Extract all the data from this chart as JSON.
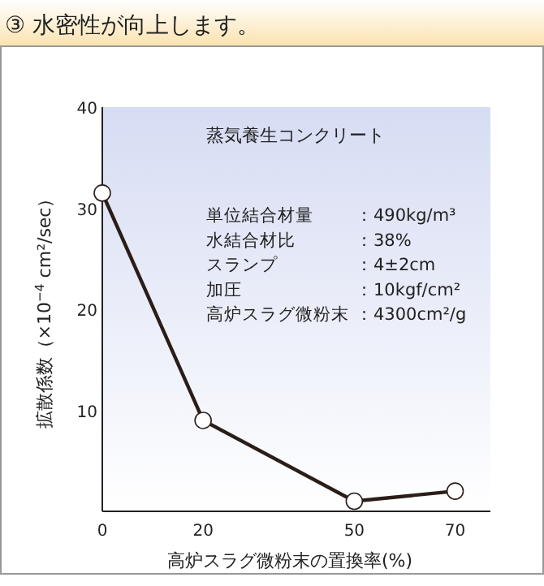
{
  "chart_data": {
    "type": "line",
    "title": "③ 水密性が向上します。",
    "xlabel": "高炉スラグ微粉末の置換率(%)",
    "ylabel": "拡散係数（×10$^{−4}$ cm²/sec）",
    "x": [
      0,
      20,
      50,
      70
    ],
    "series": [
      {
        "color": "#2b1d18",
        "values": [
          31.5,
          9,
          1,
          2
        ]
      }
    ],
    "xlim": [
      0,
      77
    ],
    "xticks": [
      0,
      20,
      50,
      70
    ],
    "ylim": [
      0,
      40
    ],
    "yticks": [
      10,
      20,
      30,
      40
    ],
    "marker": "circle",
    "line_style": "solid",
    "grid": false,
    "annotations": [
      "蒸気養生コンクリート",
      "単位結合材量　　：490kg/m³",
      "水結合材比　　　：38%",
      "スランプ　　　　：4±2cm",
      "加圧　　　　　　：10kgf/cm²",
      "高炉スラグ微粉末：4300cm²/g"
    ]
  }
}
